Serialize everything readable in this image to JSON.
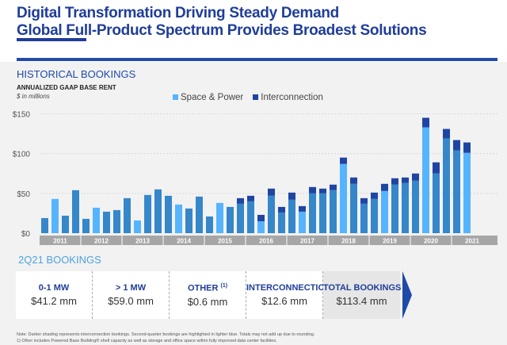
{
  "header": {
    "title_line1": "Digital Transformation Driving Steady Demand",
    "title_line2": "Global Full-Product Spectrum Provides Broadest Solutions"
  },
  "section": {
    "title": "HISTORICAL BOOKINGS",
    "subtitle": "ANNUALIZED GAAP BASE RENT",
    "unit": "$ in millions"
  },
  "colors": {
    "space_power": "#3587c9",
    "space_power_q2": "#56b4ff",
    "interconnection": "#1f45a3",
    "accent": "#1f3d99"
  },
  "chart_data": {
    "type": "bar",
    "stacked": true,
    "ylabel": "",
    "xlabel": "",
    "ylim": [
      0,
      150
    ],
    "yticks": [
      0,
      50,
      100,
      150
    ],
    "ytick_labels": [
      "$0",
      "$50",
      "$100",
      "$150"
    ],
    "grid": true,
    "legend_position": "top",
    "year_labels": [
      "2011",
      "2012",
      "2013",
      "2014",
      "2015",
      "2016",
      "2017",
      "2018",
      "2019",
      "2020",
      "2021"
    ],
    "categories": [
      "1Q11",
      "2Q11",
      "3Q11",
      "4Q11",
      "1Q12",
      "2Q12",
      "3Q12",
      "4Q12",
      "1Q13",
      "2Q13",
      "3Q13",
      "4Q13",
      "1Q14",
      "2Q14",
      "3Q14",
      "4Q14",
      "1Q15",
      "2Q15",
      "3Q15",
      "4Q15",
      "1Q16",
      "2Q16",
      "3Q16",
      "4Q16",
      "1Q17",
      "2Q17",
      "3Q17",
      "4Q17",
      "1Q18",
      "2Q18",
      "3Q18",
      "4Q18",
      "1Q19",
      "2Q19",
      "3Q19",
      "4Q19",
      "1Q20",
      "2Q20",
      "3Q20",
      "4Q20",
      "1Q21",
      "2Q21"
    ],
    "series": [
      {
        "name": "Space & Power",
        "values": [
          19,
          43,
          22,
          54,
          18,
          32,
          27,
          29,
          44,
          16,
          48,
          55,
          47,
          36,
          31,
          46,
          21,
          38,
          33,
          37,
          40,
          15,
          47,
          26,
          42,
          27,
          50,
          50,
          54,
          87,
          62,
          37,
          43,
          53,
          61,
          63,
          66,
          133,
          75,
          119,
          104,
          101
        ]
      },
      {
        "name": "Interconnection",
        "values": [
          0,
          0,
          0,
          0,
          0,
          0,
          0,
          0,
          0,
          0,
          0,
          0,
          0,
          0,
          0,
          0,
          0,
          0,
          0,
          7,
          7,
          8,
          9,
          7,
          9,
          7,
          8,
          6,
          7,
          8,
          8,
          7,
          8,
          9,
          8,
          7,
          9,
          12,
          14,
          12,
          13,
          13
        ]
      }
    ],
    "highlighted_quarter": "Q2"
  },
  "legend": {
    "items": [
      "Space & Power",
      "Interconnection"
    ]
  },
  "bookings": {
    "title": "2Q21 BOOKINGS",
    "items": [
      {
        "label": "0-1 MW",
        "sup": "",
        "value": "$41.2 mm"
      },
      {
        "label": "> 1 MW",
        "sup": "",
        "value": "$59.0 mm"
      },
      {
        "label": "OTHER ",
        "sup": "(1)",
        "value": "$0.6 mm"
      },
      {
        "label": "INTERCONNECTION",
        "sup": "",
        "value": "$12.6 mm"
      },
      {
        "label": "TOTAL BOOKINGS",
        "sup": "",
        "value": "$113.4 mm"
      }
    ]
  },
  "notes": {
    "line1": "Note:  Darker shading represents interconnection bookings.  Second-quarter bookings are highlighted in lighter blue.  Totals may not add up due to rounding.",
    "line2": "1)  Other includes Powered Base Building® shell capacity as well as storage and office space within fully improved data center facilities."
  }
}
